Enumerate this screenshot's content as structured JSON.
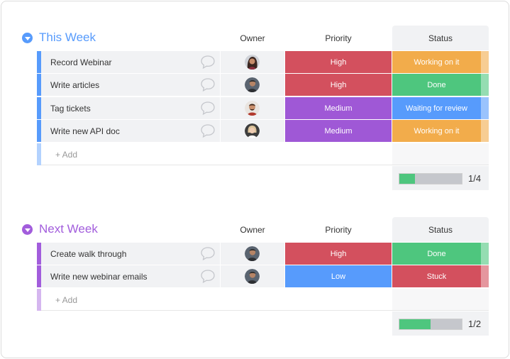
{
  "colors": {
    "this_week": "#579bfc",
    "next_week": "#a25ddc",
    "high": "#d3505e",
    "medium": "#9f58d6",
    "low": "#579bfc",
    "working": "#f2ac4b",
    "done": "#4ec67e",
    "waiting": "#579bfc",
    "stuck": "#d3505e"
  },
  "columns": {
    "owner": "Owner",
    "priority": "Priority",
    "status": "Status"
  },
  "groups": [
    {
      "title": "This Week",
      "add_label": "+ Add",
      "progress_label": "1/4",
      "progress_fraction": 0.25,
      "items": [
        {
          "name": "Record Webinar",
          "priority": "High",
          "status": "Working on it",
          "avatar": "avatar-woman"
        },
        {
          "name": "Write articles",
          "priority": "High",
          "status": "Done",
          "avatar": "avatar-man"
        },
        {
          "name": "Tag tickets",
          "priority": "Medium",
          "status": "Waiting for review",
          "avatar": "avatar-man-beard"
        },
        {
          "name": "Write new API doc",
          "priority": "Medium",
          "status": "Working on it",
          "avatar": "avatar-woman-light"
        }
      ]
    },
    {
      "title": "Next Week",
      "add_label": "+ Add",
      "progress_label": "1/2",
      "progress_fraction": 0.5,
      "items": [
        {
          "name": "Create walk through",
          "priority": "High",
          "status": "Done",
          "avatar": "avatar-man"
        },
        {
          "name": "Write new webinar emails",
          "priority": "Low",
          "status": "Stuck",
          "avatar": "avatar-man"
        }
      ]
    }
  ]
}
